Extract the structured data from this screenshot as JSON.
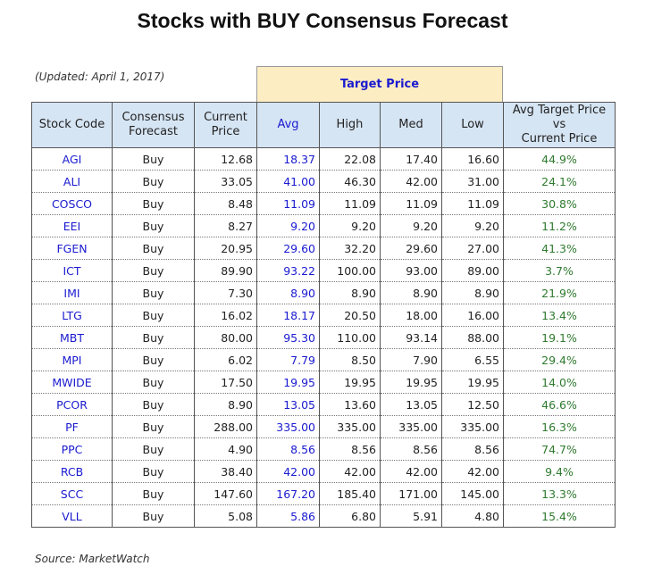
{
  "title": "Stocks with BUY Consensus Forecast",
  "updated": "(Updated: April 1, 2017)",
  "target_price_label": "Target Price",
  "source": "Source: MarketWatch",
  "colors": {
    "header_bg": "#d6e5f4",
    "target_bg": "#fdedc2",
    "blue_text": "#1a1ad0",
    "green_text": "#2f7a2f"
  },
  "headers": {
    "code": "Stock Code",
    "consensus_1": "Consensus",
    "consensus_2": "Forecast",
    "current_1": "Current",
    "current_2": "Price",
    "avg": "Avg",
    "high": "High",
    "med": "Med",
    "low": "Low",
    "pct_1": "Avg Target Price",
    "pct_2": "vs",
    "pct_3": "Current Price"
  },
  "rows": [
    {
      "code": "AGI",
      "consensus": "Buy",
      "current": "12.68",
      "avg": "18.37",
      "high": "22.08",
      "med": "17.40",
      "low": "16.60",
      "pct": "44.9%"
    },
    {
      "code": "ALI",
      "consensus": "Buy",
      "current": "33.05",
      "avg": "41.00",
      "high": "46.30",
      "med": "42.00",
      "low": "31.00",
      "pct": "24.1%"
    },
    {
      "code": "COSCO",
      "consensus": "Buy",
      "current": "8.48",
      "avg": "11.09",
      "high": "11.09",
      "med": "11.09",
      "low": "11.09",
      "pct": "30.8%"
    },
    {
      "code": "EEI",
      "consensus": "Buy",
      "current": "8.27",
      "avg": "9.20",
      "high": "9.20",
      "med": "9.20",
      "low": "9.20",
      "pct": "11.2%"
    },
    {
      "code": "FGEN",
      "consensus": "Buy",
      "current": "20.95",
      "avg": "29.60",
      "high": "32.20",
      "med": "29.60",
      "low": "27.00",
      "pct": "41.3%"
    },
    {
      "code": "ICT",
      "consensus": "Buy",
      "current": "89.90",
      "avg": "93.22",
      "high": "100.00",
      "med": "93.00",
      "low": "89.00",
      "pct": "3.7%"
    },
    {
      "code": "IMI",
      "consensus": "Buy",
      "current": "7.30",
      "avg": "8.90",
      "high": "8.90",
      "med": "8.90",
      "low": "8.90",
      "pct": "21.9%"
    },
    {
      "code": "LTG",
      "consensus": "Buy",
      "current": "16.02",
      "avg": "18.17",
      "high": "20.50",
      "med": "18.00",
      "low": "16.00",
      "pct": "13.4%"
    },
    {
      "code": "MBT",
      "consensus": "Buy",
      "current": "80.00",
      "avg": "95.30",
      "high": "110.00",
      "med": "93.14",
      "low": "88.00",
      "pct": "19.1%"
    },
    {
      "code": "MPI",
      "consensus": "Buy",
      "current": "6.02",
      "avg": "7.79",
      "high": "8.50",
      "med": "7.90",
      "low": "6.55",
      "pct": "29.4%"
    },
    {
      "code": "MWIDE",
      "consensus": "Buy",
      "current": "17.50",
      "avg": "19.95",
      "high": "19.95",
      "med": "19.95",
      "low": "19.95",
      "pct": "14.0%"
    },
    {
      "code": "PCOR",
      "consensus": "Buy",
      "current": "8.90",
      "avg": "13.05",
      "high": "13.60",
      "med": "13.05",
      "low": "12.50",
      "pct": "46.6%"
    },
    {
      "code": "PF",
      "consensus": "Buy",
      "current": "288.00",
      "avg": "335.00",
      "high": "335.00",
      "med": "335.00",
      "low": "335.00",
      "pct": "16.3%"
    },
    {
      "code": "PPC",
      "consensus": "Buy",
      "current": "4.90",
      "avg": "8.56",
      "high": "8.56",
      "med": "8.56",
      "low": "8.56",
      "pct": "74.7%"
    },
    {
      "code": "RCB",
      "consensus": "Buy",
      "current": "38.40",
      "avg": "42.00",
      "high": "42.00",
      "med": "42.00",
      "low": "42.00",
      "pct": "9.4%"
    },
    {
      "code": "SCC",
      "consensus": "Buy",
      "current": "147.60",
      "avg": "167.20",
      "high": "185.40",
      "med": "171.00",
      "low": "145.00",
      "pct": "13.3%"
    },
    {
      "code": "VLL",
      "consensus": "Buy",
      "current": "5.08",
      "avg": "5.86",
      "high": "6.80",
      "med": "5.91",
      "low": "4.80",
      "pct": "15.4%"
    }
  ]
}
